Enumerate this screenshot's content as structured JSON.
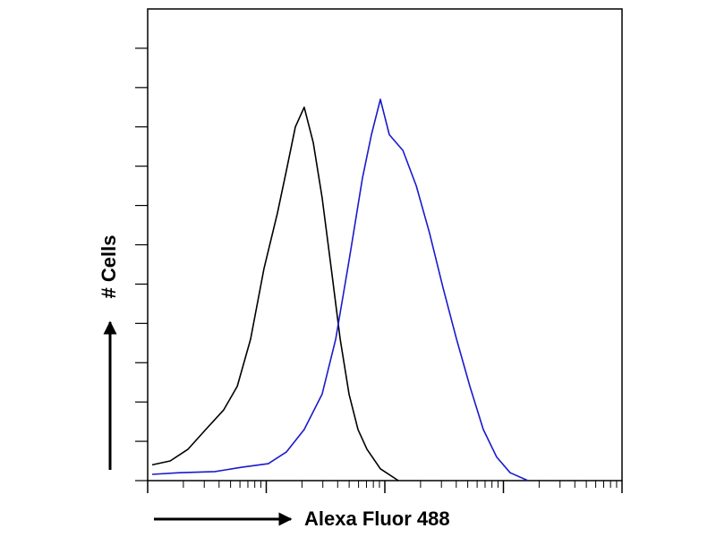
{
  "chart_data": {
    "type": "line",
    "x_label": "Alexa Fluor 488",
    "y_label": "# Cells",
    "xlog": true,
    "xlim": [
      1,
      10000
    ],
    "xticks": [
      1,
      10,
      100,
      1000,
      10000
    ],
    "xminorticks": [
      2,
      3,
      4,
      5,
      6,
      7,
      8,
      9,
      20,
      30,
      40,
      50,
      60,
      70,
      80,
      90,
      200,
      300,
      400,
      500,
      600,
      700,
      800,
      900,
      2000,
      3000,
      4000,
      5000,
      6000,
      7000,
      8000,
      9000
    ],
    "ylim": [
      0,
      12
    ],
    "yticks": [
      0,
      1,
      2,
      3,
      4,
      5,
      6,
      7,
      8,
      9,
      10,
      11
    ],
    "series": [
      {
        "color": "#000000",
        "x": [
          1.09,
          1.55,
          2.19,
          3.09,
          4.38,
          5.69,
          7.38,
          9.58,
          12.4,
          14.8,
          17.6,
          20.9,
          24.9,
          29.6,
          35.3,
          42.0,
          49.9,
          59.4,
          70.6,
          91.6,
          130
        ],
        "values": [
          0.4,
          0.5,
          0.8,
          1.3,
          1.8,
          2.4,
          3.6,
          5.4,
          6.8,
          7.9,
          9.0,
          9.5,
          8.6,
          7.2,
          5.4,
          3.6,
          2.2,
          1.3,
          0.8,
          0.3,
          0
        ]
      },
      {
        "color": "#1a1acc",
        "x": [
          1.09,
          1.84,
          3.68,
          6.2,
          10.4,
          14.8,
          20.9,
          29.6,
          38.5,
          49.9,
          64.8,
          77.1,
          91.6,
          109,
          142,
          184,
          238,
          310,
          402,
          521,
          676,
          877,
          1140,
          1610
        ],
        "values": [
          0.16,
          0.2,
          0.23,
          0.34,
          0.43,
          0.73,
          1.3,
          2.2,
          3.6,
          5.6,
          7.7,
          8.8,
          9.7,
          8.8,
          8.4,
          7.5,
          6.3,
          4.9,
          3.6,
          2.4,
          1.3,
          0.6,
          0.2,
          0
        ]
      }
    ]
  }
}
